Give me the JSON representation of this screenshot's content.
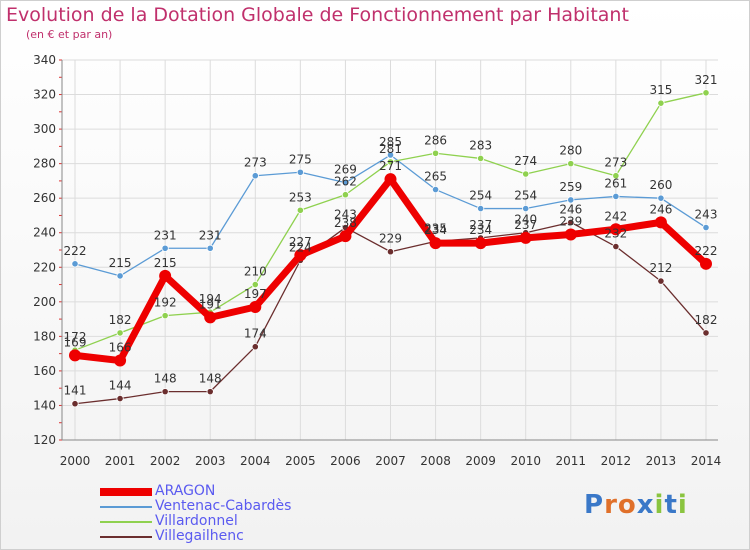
{
  "chart_data": {
    "type": "line",
    "title": "Evolution de la Dotation Globale de Fonctionnement par Habitant",
    "subtitle": "(en € et par an)",
    "xlabel": "",
    "ylabel": "",
    "ylim": [
      120,
      340
    ],
    "yticks": [
      120,
      140,
      160,
      180,
      200,
      220,
      240,
      260,
      280,
      300,
      320,
      340
    ],
    "grid": true,
    "legend_position": "bottom-left",
    "categories": [
      "2000",
      "2001",
      "2002",
      "2003",
      "2004",
      "2005",
      "2006",
      "2007",
      "2008",
      "2009",
      "2010",
      "2011",
      "2012",
      "2013",
      "2014"
    ],
    "series": [
      {
        "name": "ARAGON",
        "color": "#ee0000",
        "emphasis": true,
        "values": [
          169,
          166,
          215,
          191,
          197,
          227,
          238,
          271,
          234,
          234,
          237,
          239,
          242,
          246,
          222
        ]
      },
      {
        "name": "Ventenac-Cabardès",
        "color": "#5b9bd5",
        "values": [
          222,
          215,
          231,
          231,
          273,
          275,
          269,
          285,
          265,
          254,
          254,
          259,
          261,
          260,
          243
        ]
      },
      {
        "name": "Villardonnel",
        "color": "#8fd14f",
        "values": [
          172,
          182,
          192,
          194,
          210,
          253,
          262,
          281,
          286,
          283,
          274,
          280,
          273,
          315,
          321
        ]
      },
      {
        "name": "Villegailhenc",
        "color": "#6b2e2e",
        "values": [
          141,
          144,
          148,
          148,
          174,
          224,
          243,
          229,
          235,
          237,
          240,
          246,
          232,
          212,
          182
        ]
      }
    ]
  },
  "logo": {
    "text": "Proxiti",
    "letter_colors": [
      "#3a78c8",
      "#e0702a",
      "#e0702a",
      "#3a78c8",
      "#8ac43f",
      "#3a78c8",
      "#8ac43f"
    ]
  }
}
